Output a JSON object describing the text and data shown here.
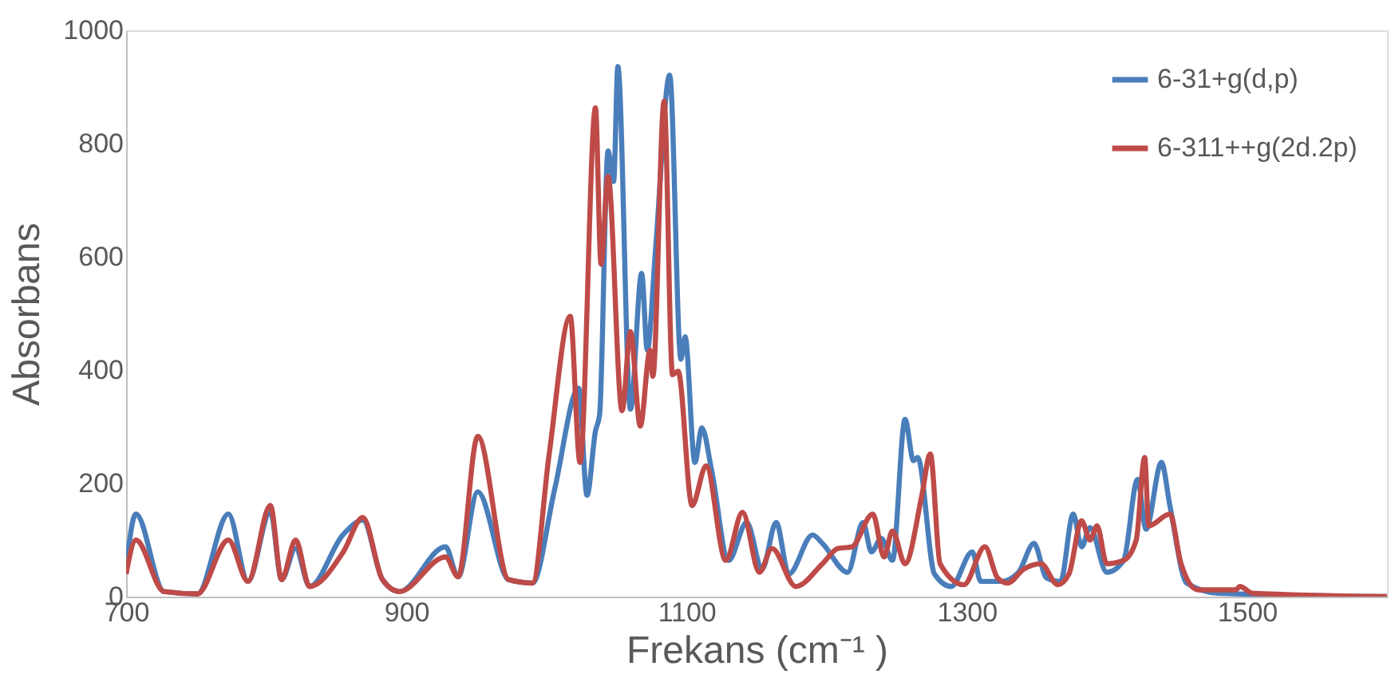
{
  "chart_data": {
    "type": "line",
    "xlabel": "Frekans (cm⁻¹ )",
    "ylabel": "Absorbans",
    "xlim": [
      700,
      1600
    ],
    "xticks": [
      700,
      900,
      1100,
      1300,
      1500
    ],
    "ylim": [
      0,
      1000
    ],
    "yticks": [
      0,
      200,
      400,
      600,
      800,
      1000
    ],
    "grid": false,
    "legend": "top right",
    "marker": "none",
    "line_style": "solid",
    "series": [
      {
        "name": "6-31+g(d,p)",
        "color": "#4a7ebb",
        "x": [
          700,
          707,
          727,
          751,
          773,
          787,
          803,
          811,
          821,
          831,
          855,
          869,
          883,
          895,
          928,
          937,
          951,
          973,
          990,
          1006,
          1023,
          1029,
          1035,
          1038,
          1044,
          1048,
          1051,
          1060,
          1068,
          1072,
          1078,
          1088,
          1096,
          1099,
          1106,
          1111,
          1118,
          1130,
          1143,
          1154,
          1164,
          1173,
          1190,
          1197,
          1215,
          1226,
          1232,
          1239,
          1247,
          1256,
          1262,
          1265,
          1277,
          1289,
          1304,
          1310,
          1325,
          1337,
          1348,
          1357,
          1367,
          1376,
          1382,
          1388,
          1400,
          1412,
          1422,
          1428,
          1439,
          1445,
          1457,
          1480,
          1600
        ],
        "values": [
          50,
          146,
          9,
          5,
          146,
          27,
          150,
          30,
          85,
          18,
          110,
          135,
          30,
          9,
          88,
          35,
          185,
          30,
          24,
          191,
          368,
          179,
          292,
          322,
          787,
          733,
          936,
          331,
          571,
          435,
          617,
          921,
          419,
          459,
          237,
          298,
          222,
          64,
          131,
          49,
          131,
          40,
          109,
          94,
          43,
          131,
          79,
          103,
          64,
          313,
          240,
          246,
          40,
          18,
          79,
          27,
          27,
          43,
          94,
          33,
          27,
          146,
          88,
          122,
          43,
          64,
          207,
          119,
          237,
          161,
          24,
          6,
          0
        ]
      },
      {
        "name": "6-311++g(2d.2p)",
        "color": "#be4b48",
        "x": [
          700,
          707,
          727,
          751,
          773,
          787,
          803,
          811,
          821,
          831,
          855,
          869,
          883,
          895,
          928,
          937,
          951,
          973,
          990,
          1002,
          1017,
          1024,
          1035,
          1039,
          1044,
          1054,
          1060,
          1067,
          1074,
          1076,
          1084,
          1090,
          1094,
          1104,
          1114,
          1128,
          1140,
          1152,
          1161,
          1178,
          1197,
          1208,
          1218,
          1233,
          1241,
          1247,
          1256,
          1268,
          1274,
          1281,
          1298,
          1313,
          1322,
          1329,
          1341,
          1353,
          1365,
          1373,
          1382,
          1388,
          1393,
          1400,
          1412,
          1421,
          1427,
          1430,
          1445,
          1453,
          1465,
          1492,
          1495,
          1504,
          1600
        ],
        "values": [
          40,
          100,
          9,
          5,
          100,
          27,
          161,
          30,
          100,
          18,
          79,
          140,
          30,
          9,
          70,
          35,
          283,
          30,
          24,
          252,
          495,
          237,
          863,
          587,
          742,
          328,
          468,
          301,
          435,
          389,
          875,
          392,
          398,
          161,
          231,
          64,
          149,
          43,
          85,
          18,
          58,
          85,
          88,
          146,
          70,
          116,
          58,
          179,
          252,
          58,
          21,
          88,
          33,
          24,
          49,
          58,
          21,
          40,
          134,
          100,
          125,
          58,
          64,
          100,
          246,
          125,
          146,
          58,
          12,
          12,
          18,
          6,
          0
        ]
      }
    ]
  }
}
